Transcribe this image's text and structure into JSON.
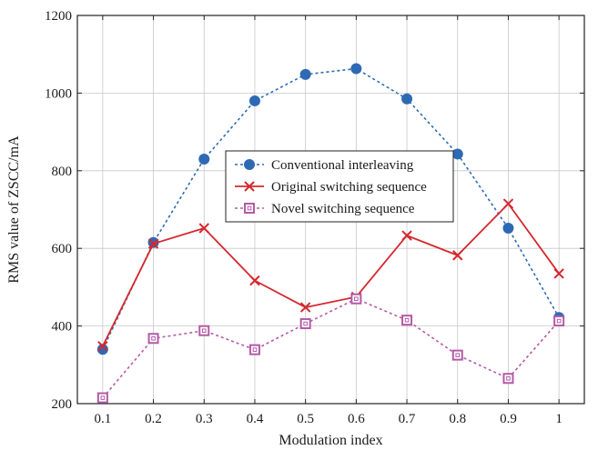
{
  "chart_data": {
    "type": "line",
    "title": "",
    "xlabel": "Modulation index",
    "ylabel": "RMS value of ZSCC/mA",
    "x": [
      0.1,
      0.2,
      0.3,
      0.4,
      0.5,
      0.6,
      0.7,
      0.8,
      0.9,
      1.0
    ],
    "x_tick_labels": [
      "0.1",
      "0.2",
      "0.3",
      "0.4",
      "0.5",
      "0.6",
      "0.7",
      "0.8",
      "0.9",
      "1"
    ],
    "y_tick_labels": [
      "200",
      "400",
      "600",
      "800",
      "1000",
      "1200"
    ],
    "xlim": [
      0.05,
      1.05
    ],
    "ylim": [
      200,
      1200
    ],
    "grid": true,
    "legend_position": "center",
    "series": [
      {
        "name": "Conventional interleaving",
        "values": [
          340,
          615,
          830,
          980,
          1048,
          1063,
          985,
          843,
          652,
          422
        ],
        "color": "#2e6ab4",
        "line_style": "dotted",
        "marker": "filled-circle"
      },
      {
        "name": "Original switching sequence",
        "values": [
          348,
          612,
          652,
          517,
          448,
          475,
          633,
          582,
          715,
          535
        ],
        "color": "#d4282e",
        "line_style": "solid",
        "marker": "x"
      },
      {
        "name": "Novel switching sequence",
        "values": [
          215,
          368,
          388,
          339,
          406,
          470,
          415,
          325,
          265,
          413
        ],
        "color": "#b45aa6",
        "line_style": "dotted",
        "marker": "open-square"
      }
    ]
  }
}
